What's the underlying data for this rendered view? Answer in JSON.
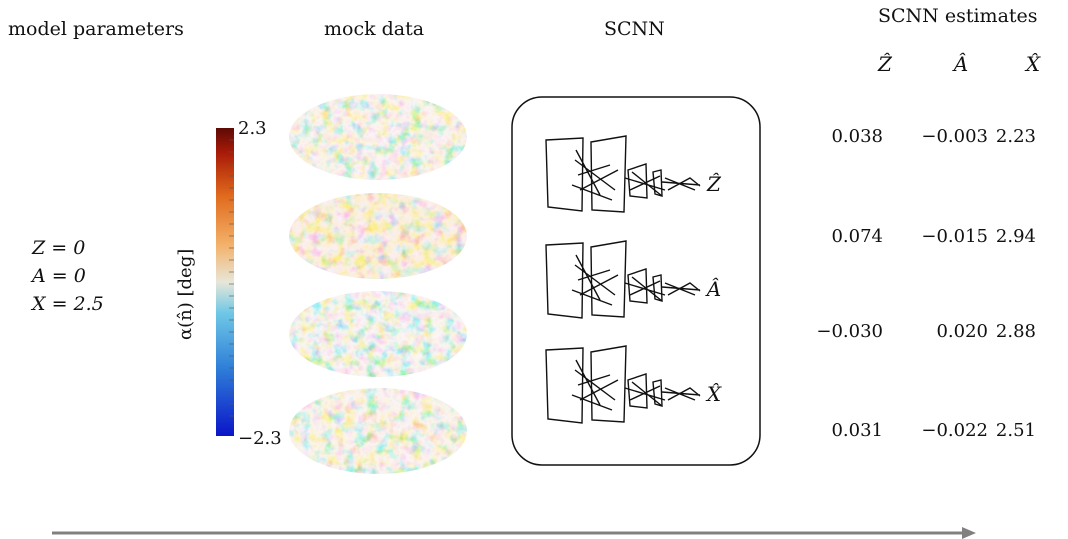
{
  "headers": {
    "model_parameters": "model parameters",
    "mock_data": "mock data",
    "scnn": "SCNN",
    "scnn_estimates": "SCNN estimates"
  },
  "params": [
    "Z = 0",
    "A = 0",
    "X = 2.5"
  ],
  "colorbar": {
    "label": "α(n̂) [deg]",
    "max_label": "2.3",
    "min_label": "−2.3",
    "colors": [
      "#0b15c8",
      "#2f7ed8",
      "#6fc8e6",
      "#e8e6d8",
      "#f3b26a",
      "#e06a1c",
      "#a81a08",
      "#5e0a05"
    ]
  },
  "scnn": {
    "outputs": [
      "Ẑ",
      "Â",
      "X̂"
    ]
  },
  "estimates": {
    "columns": [
      "Ẑ",
      "Â",
      "X̂"
    ],
    "rows": [
      [
        "0.038",
        "−0.003",
        "2.23"
      ],
      [
        "0.074",
        "−0.015",
        "2.94"
      ],
      [
        "−0.030",
        "0.020",
        "2.88"
      ],
      [
        "0.031",
        "−0.022",
        "2.51"
      ]
    ]
  },
  "colors": {
    "arrow": "#808080",
    "outline": "#111111"
  }
}
